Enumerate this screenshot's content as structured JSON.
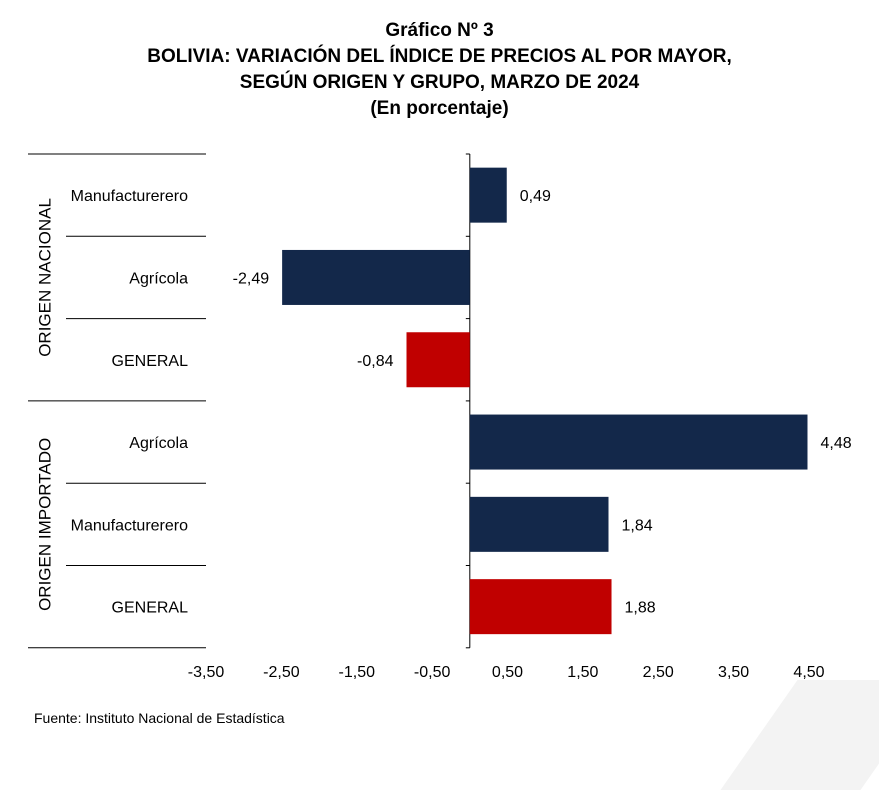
{
  "title_lines": [
    "Gráfico Nº 3",
    "BOLIVIA: VARIACIÓN DEL ÍNDICE DE PRECIOS AL POR MAYOR,",
    "SEGÚN ORIGEN Y GRUPO, MARZO DE 2024",
    "(En porcentaje)"
  ],
  "source": "Fuente: Instituto Nacional de Estadística",
  "colors": {
    "group": "#13284a",
    "general": "#c00000"
  },
  "chart_data": {
    "type": "bar",
    "orientation": "horizontal",
    "groups": [
      {
        "name": "ORIGEN NACIONAL",
        "items": [
          {
            "label": "Manufacturerero",
            "value": 0.49,
            "value_label": "0,49",
            "kind": "group"
          },
          {
            "label": "Agrícola",
            "value": -2.49,
            "value_label": "-2,49",
            "kind": "group"
          },
          {
            "label": "GENERAL",
            "value": -0.84,
            "value_label": "-0,84",
            "kind": "general"
          }
        ]
      },
      {
        "name": "ORIGEN IMPORTADO",
        "items": [
          {
            "label": "Agrícola",
            "value": 4.48,
            "value_label": "4,48",
            "kind": "group"
          },
          {
            "label": "Manufacturerero",
            "value": 1.84,
            "value_label": "1,84",
            "kind": "group"
          },
          {
            "label": "GENERAL",
            "value": 1.88,
            "value_label": "1,88",
            "kind": "general"
          }
        ]
      }
    ],
    "xlim": [
      -3.5,
      4.5
    ],
    "xticks": [
      -3.5,
      -2.5,
      -1.5,
      -0.5,
      0.5,
      1.5,
      2.5,
      3.5,
      4.5
    ],
    "xtick_labels": [
      "-3,50",
      "-2,50",
      "-1,50",
      "-0,50",
      "0,50",
      "1,50",
      "2,50",
      "3,50",
      "4,50"
    ],
    "grid": false,
    "legend": "none"
  }
}
